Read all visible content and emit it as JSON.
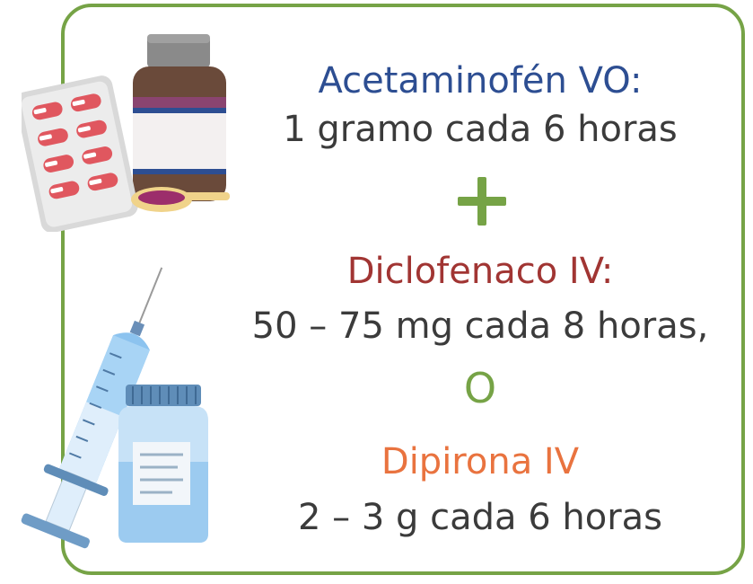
{
  "colors": {
    "frame": "#76a346",
    "acetaminofen": "#2d4e92",
    "diclofenaco": "#a13533",
    "dipirona": "#e9733f",
    "dose_text": "#3b3b3b"
  },
  "icons": [
    "pill-blister-icon",
    "medicine-bottle-icon",
    "syrup-spoon-icon",
    "syringe-icon",
    "vial-icon",
    "plus-icon"
  ],
  "drugs": [
    {
      "name": "Acetaminofén VO:",
      "dose": "1 gramo cada 6 horas"
    },
    {
      "name": "Diclofenaco IV:",
      "dose": "50 – 75 mg cada 8 horas,"
    },
    {
      "name": "Dipirona IV",
      "dose": "2 – 3 g cada 6 horas"
    }
  ],
  "connector_or": "O"
}
